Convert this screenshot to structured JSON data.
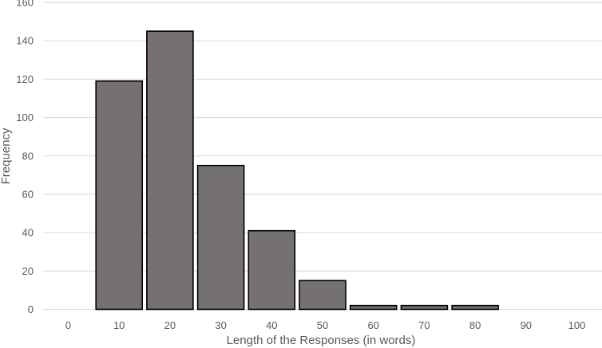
{
  "chart_data": {
    "type": "bar",
    "categories": [
      "0",
      "10",
      "20",
      "30",
      "40",
      "50",
      "60",
      "70",
      "80",
      "90",
      "100"
    ],
    "values": [
      0,
      119,
      145,
      75,
      41,
      15,
      2,
      2,
      2,
      0,
      0
    ],
    "title": "",
    "xlabel": "Length of the Responses (in words)",
    "ylabel": "Frequency",
    "ylim": [
      0,
      160
    ],
    "yticks": [
      0,
      20,
      40,
      60,
      80,
      100,
      120,
      140,
      160
    ],
    "grid": true,
    "legend": "none",
    "colors": {
      "bar_fill": "#767171",
      "bar_stroke": "#000000",
      "grid": "#d9d9d9",
      "text": "#595959"
    }
  }
}
